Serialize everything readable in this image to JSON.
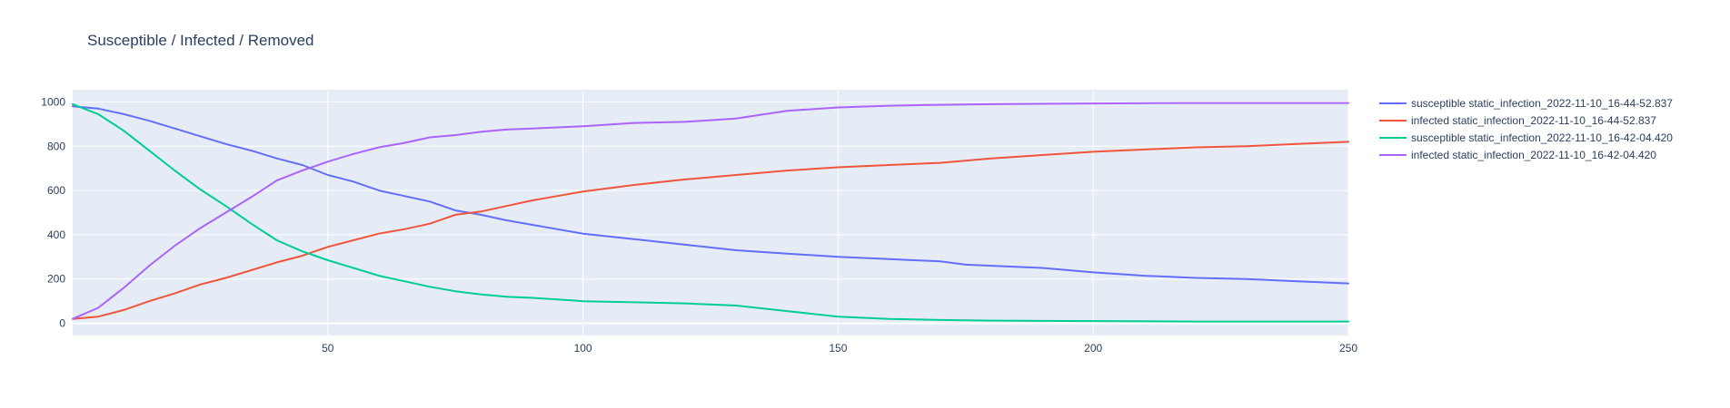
{
  "chart_data": {
    "type": "line",
    "title": "Susceptible / Infected / Removed",
    "xlabel": "",
    "ylabel": "",
    "xlim": [
      0,
      250
    ],
    "ylim": [
      -55,
      1055
    ],
    "x_ticks": [
      50,
      100,
      150,
      200,
      250
    ],
    "y_ticks": [
      0,
      200,
      400,
      600,
      800,
      1000
    ],
    "grid": true,
    "legend_position": "right",
    "series": [
      {
        "name": "susceptible static_infection_2022-11-10_16-44-52.837",
        "color": "#636efa",
        "x": [
          0,
          5,
          10,
          15,
          20,
          25,
          30,
          35,
          40,
          45,
          50,
          55,
          60,
          65,
          70,
          75,
          80,
          85,
          90,
          95,
          100,
          110,
          120,
          130,
          140,
          150,
          160,
          170,
          175,
          180,
          190,
          200,
          210,
          220,
          230,
          240,
          250
        ],
        "values": [
          980,
          970,
          945,
          915,
          880,
          845,
          810,
          780,
          745,
          715,
          670,
          640,
          600,
          575,
          550,
          510,
          490,
          465,
          445,
          425,
          405,
          380,
          355,
          330,
          315,
          300,
          290,
          280,
          265,
          260,
          250,
          230,
          215,
          205,
          200,
          190,
          180
        ]
      },
      {
        "name": "infected static_infection_2022-11-10_16-44-52.837",
        "color": "#ef553b",
        "x": [
          0,
          5,
          10,
          15,
          20,
          25,
          30,
          35,
          40,
          45,
          50,
          55,
          60,
          65,
          70,
          75,
          80,
          85,
          90,
          95,
          100,
          110,
          120,
          130,
          140,
          150,
          160,
          170,
          180,
          190,
          200,
          210,
          220,
          230,
          240,
          250
        ],
        "values": [
          20,
          30,
          60,
          100,
          135,
          175,
          205,
          240,
          275,
          305,
          345,
          375,
          405,
          425,
          450,
          490,
          505,
          530,
          555,
          575,
          595,
          625,
          650,
          670,
          690,
          705,
          715,
          725,
          745,
          760,
          775,
          785,
          795,
          800,
          810,
          820
        ]
      },
      {
        "name": "susceptible static_infection_2022-11-10_16-42-04.420",
        "color": "#00cc96",
        "x": [
          0,
          5,
          10,
          15,
          20,
          25,
          30,
          35,
          40,
          45,
          50,
          55,
          60,
          65,
          70,
          75,
          80,
          85,
          90,
          95,
          100,
          110,
          120,
          130,
          140,
          150,
          160,
          170,
          180,
          200,
          220,
          250
        ],
        "values": [
          990,
          945,
          870,
          780,
          690,
          605,
          530,
          450,
          375,
          325,
          285,
          250,
          215,
          190,
          165,
          145,
          130,
          120,
          115,
          108,
          100,
          95,
          90,
          80,
          55,
          30,
          20,
          15,
          12,
          10,
          8,
          8
        ]
      },
      {
        "name": "infected static_infection_2022-11-10_16-42-04.420",
        "color": "#ab63fa",
        "x": [
          0,
          5,
          10,
          15,
          20,
          25,
          30,
          35,
          40,
          45,
          50,
          55,
          60,
          65,
          70,
          75,
          80,
          85,
          90,
          95,
          100,
          110,
          120,
          130,
          140,
          150,
          160,
          170,
          180,
          200,
          220,
          250
        ],
        "values": [
          20,
          70,
          160,
          260,
          350,
          430,
          500,
          570,
          645,
          690,
          730,
          765,
          795,
          815,
          840,
          850,
          865,
          875,
          880,
          885,
          890,
          905,
          910,
          925,
          960,
          975,
          983,
          987,
          990,
          993,
          995,
          995
        ]
      }
    ]
  }
}
